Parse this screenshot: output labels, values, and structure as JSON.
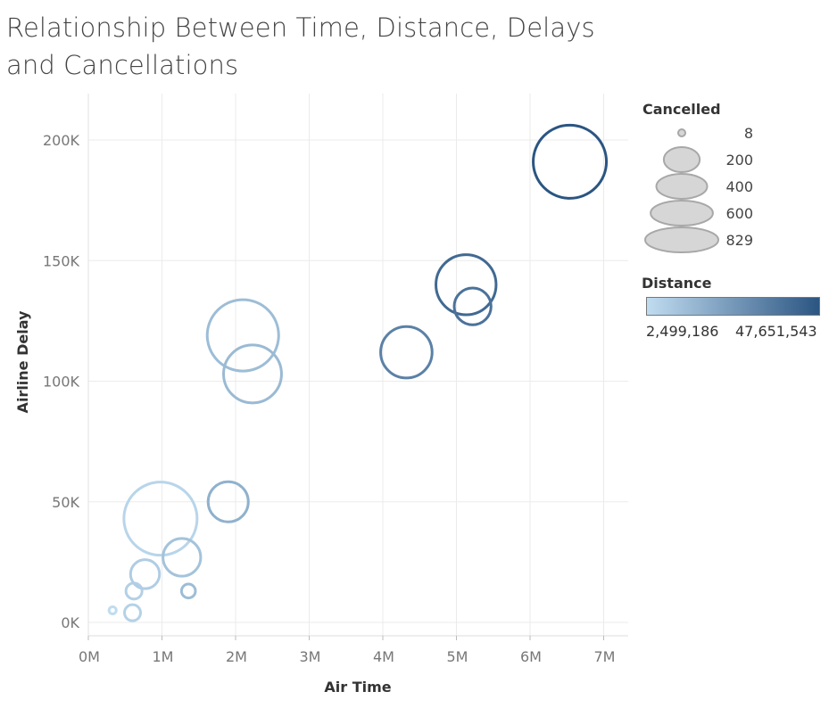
{
  "chart_data": {
    "type": "scatter",
    "title": "Relationship Between Time, Distance, Delays and Cancellations",
    "xlabel": "Air Time",
    "ylabel": "Airline Delay",
    "xlim": [
      -0.2,
      7.35
    ],
    "ylim": [
      -5000,
      220000
    ],
    "x_unit_suffix": "M",
    "x_ticks": [
      "0M",
      "1M",
      "2M",
      "3M",
      "4M",
      "5M",
      "6M",
      "7M"
    ],
    "y_ticks": [
      "0K",
      "50K",
      "100K",
      "150K",
      "200K"
    ],
    "grid": true,
    "size_field": "Cancelled",
    "color_field": "Distance",
    "points": [
      {
        "x": 0.33,
        "y": 5000,
        "cancelled": 8,
        "distance": 2499186
      },
      {
        "x": 0.6,
        "y": 4000,
        "cancelled": 40,
        "distance": 6000000
      },
      {
        "x": 0.62,
        "y": 13000,
        "cancelled": 40,
        "distance": 6500000
      },
      {
        "x": 0.77,
        "y": 20000,
        "cancelled": 130,
        "distance": 7500000
      },
      {
        "x": 0.98,
        "y": 43000,
        "cancelled": 829,
        "distance": 5000000
      },
      {
        "x": 1.27,
        "y": 27000,
        "cancelled": 220,
        "distance": 11000000
      },
      {
        "x": 1.36,
        "y": 13000,
        "cancelled": 30,
        "distance": 13000000
      },
      {
        "x": 1.9,
        "y": 50000,
        "cancelled": 250,
        "distance": 17000000
      },
      {
        "x": 2.1,
        "y": 119000,
        "cancelled": 790,
        "distance": 13000000
      },
      {
        "x": 2.23,
        "y": 103000,
        "cancelled": 520,
        "distance": 14000000
      },
      {
        "x": 4.32,
        "y": 112000,
        "cancelled": 410,
        "distance": 33000000
      },
      {
        "x": 5.13,
        "y": 140000,
        "cancelled": 560,
        "distance": 41000000
      },
      {
        "x": 5.22,
        "y": 131000,
        "cancelled": 210,
        "distance": 38000000
      },
      {
        "x": 6.54,
        "y": 191000,
        "cancelled": 829,
        "distance": 47651543
      }
    ],
    "size_legend": [
      "8",
      "200",
      "400",
      "600",
      "829"
    ],
    "distance_min": "2,499,186",
    "distance_max": "47,651,543",
    "color_low": "#c0dcf0",
    "color_high": "#2b5582"
  }
}
